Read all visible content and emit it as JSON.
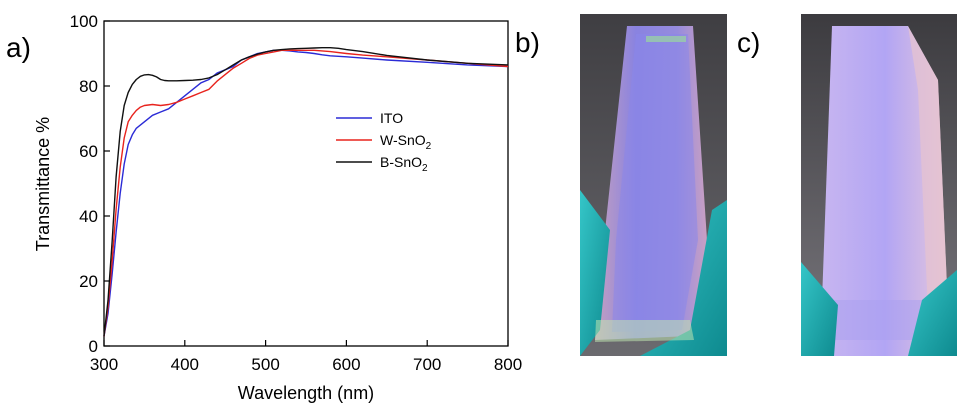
{
  "panels": {
    "a": "a)",
    "b": "b)",
    "c": "c)"
  },
  "chart_data": {
    "type": "line",
    "xlabel": "Wavelength (nm)",
    "ylabel": "Transmittance %",
    "xlim": [
      300,
      800
    ],
    "ylim": [
      0,
      100
    ],
    "xticks": [
      300,
      400,
      500,
      600,
      700,
      800
    ],
    "yticks": [
      0,
      20,
      40,
      60,
      80,
      100
    ],
    "grid": false,
    "legend_position": "center-right",
    "series": [
      {
        "name": "ITO",
        "name_base": "ITO",
        "name_sub": "",
        "color": "#2b2bd6",
        "x": [
          300,
          305,
          310,
          315,
          320,
          325,
          330,
          335,
          340,
          350,
          360,
          370,
          380,
          390,
          400,
          410,
          420,
          430,
          440,
          450,
          460,
          470,
          480,
          490,
          500,
          510,
          520,
          530,
          540,
          550,
          560,
          570,
          580,
          600,
          620,
          650,
          700,
          750,
          800
        ],
        "y": [
          3,
          10,
          22,
          35,
          47,
          56,
          62,
          65,
          67,
          69,
          71,
          72,
          73,
          75,
          77,
          79,
          81,
          82,
          84,
          85,
          86,
          88,
          89,
          90,
          90.5,
          91,
          91,
          90.8,
          90.5,
          90.3,
          90,
          89.6,
          89.3,
          89,
          88.6,
          88,
          87.3,
          86.5,
          86
        ]
      },
      {
        "name": "W-SnO2",
        "name_base": "W-SnO",
        "name_sub": "2",
        "color": "#e8231d",
        "x": [
          300,
          305,
          310,
          315,
          320,
          325,
          330,
          335,
          340,
          345,
          350,
          360,
          370,
          380,
          390,
          400,
          410,
          420,
          430,
          440,
          450,
          460,
          470,
          480,
          490,
          500,
          510,
          520,
          530,
          540,
          550,
          560,
          570,
          580,
          600,
          620,
          650,
          700,
          750,
          800
        ],
        "y": [
          3,
          12,
          26,
          42,
          55,
          64,
          69,
          71,
          72.5,
          73.5,
          74,
          74.3,
          74,
          74.3,
          75,
          76,
          77,
          78,
          79,
          81.5,
          83.5,
          85.5,
          87,
          88.5,
          89.5,
          90,
          90.5,
          91,
          91,
          91,
          91,
          91,
          90.8,
          90.6,
          90,
          89.5,
          89,
          88,
          87,
          86
        ]
      },
      {
        "name": "B-SnO2",
        "name_base": "B-SnO",
        "name_sub": "2",
        "color": "#111111",
        "x": [
          300,
          305,
          310,
          315,
          320,
          325,
          330,
          335,
          340,
          345,
          350,
          355,
          360,
          365,
          370,
          375,
          380,
          390,
          400,
          410,
          420,
          430,
          440,
          450,
          460,
          470,
          480,
          490,
          500,
          510,
          520,
          530,
          540,
          550,
          560,
          570,
          580,
          590,
          600,
          620,
          650,
          700,
          750,
          800
        ],
        "y": [
          3,
          14,
          32,
          52,
          66,
          74,
          78,
          80.5,
          82,
          83,
          83.4,
          83.5,
          83.3,
          82.8,
          82,
          81.7,
          81.6,
          81.6,
          81.7,
          81.8,
          82,
          82.5,
          83.5,
          85,
          86.5,
          88,
          89,
          89.8,
          90.5,
          91,
          91.2,
          91.4,
          91.5,
          91.6,
          91.7,
          91.8,
          91.8,
          91.6,
          91.2,
          90.6,
          89.4,
          88,
          87,
          86.5
        ]
      }
    ]
  },
  "photos": {
    "b": {
      "colors": [
        "#4e4b4d",
        "#8f86e6",
        "#d7a9c8",
        "#1fb7b7"
      ]
    },
    "c": {
      "colors": [
        "#4d4b4e",
        "#b8abf2",
        "#e4c6d8",
        "#27b5b5"
      ]
    }
  }
}
